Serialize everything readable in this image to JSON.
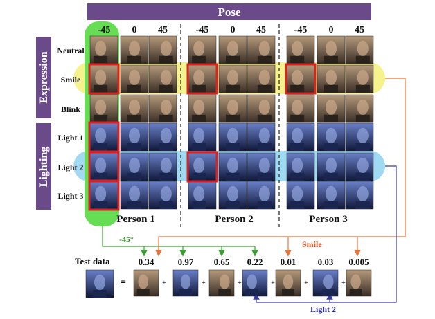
{
  "header": {
    "title": "Pose"
  },
  "pose_labels": [
    "-45",
    "0",
    "45"
  ],
  "sections": {
    "expression": "Expression",
    "lighting": "Lighting"
  },
  "rows": [
    "Neutral",
    "Smile",
    "Blink",
    "Light 1",
    "Light 2",
    "Light 3"
  ],
  "persons": [
    "Person 1",
    "Person 2",
    "Person 3"
  ],
  "annotations": {
    "pose_sel": "-45°",
    "smile": "Smile",
    "light2": "Light 2"
  },
  "test": {
    "label": "Test data",
    "equals": "=",
    "plus": "+",
    "coefficients": [
      "0.34",
      "0.97",
      "0.65",
      "0.22",
      "0.01",
      "0.03",
      "0.005"
    ]
  },
  "colors": {
    "header": "#6b4a8a",
    "sidebar": "#6b4a8a",
    "green": "#66dd55",
    "yellow": "#f5f07a",
    "cyan": "#8fd4f0",
    "red": "#e02020",
    "orange": "#e8743a",
    "blue_arrow": "#3a3ab0",
    "green_arrow": "#3aa030"
  }
}
